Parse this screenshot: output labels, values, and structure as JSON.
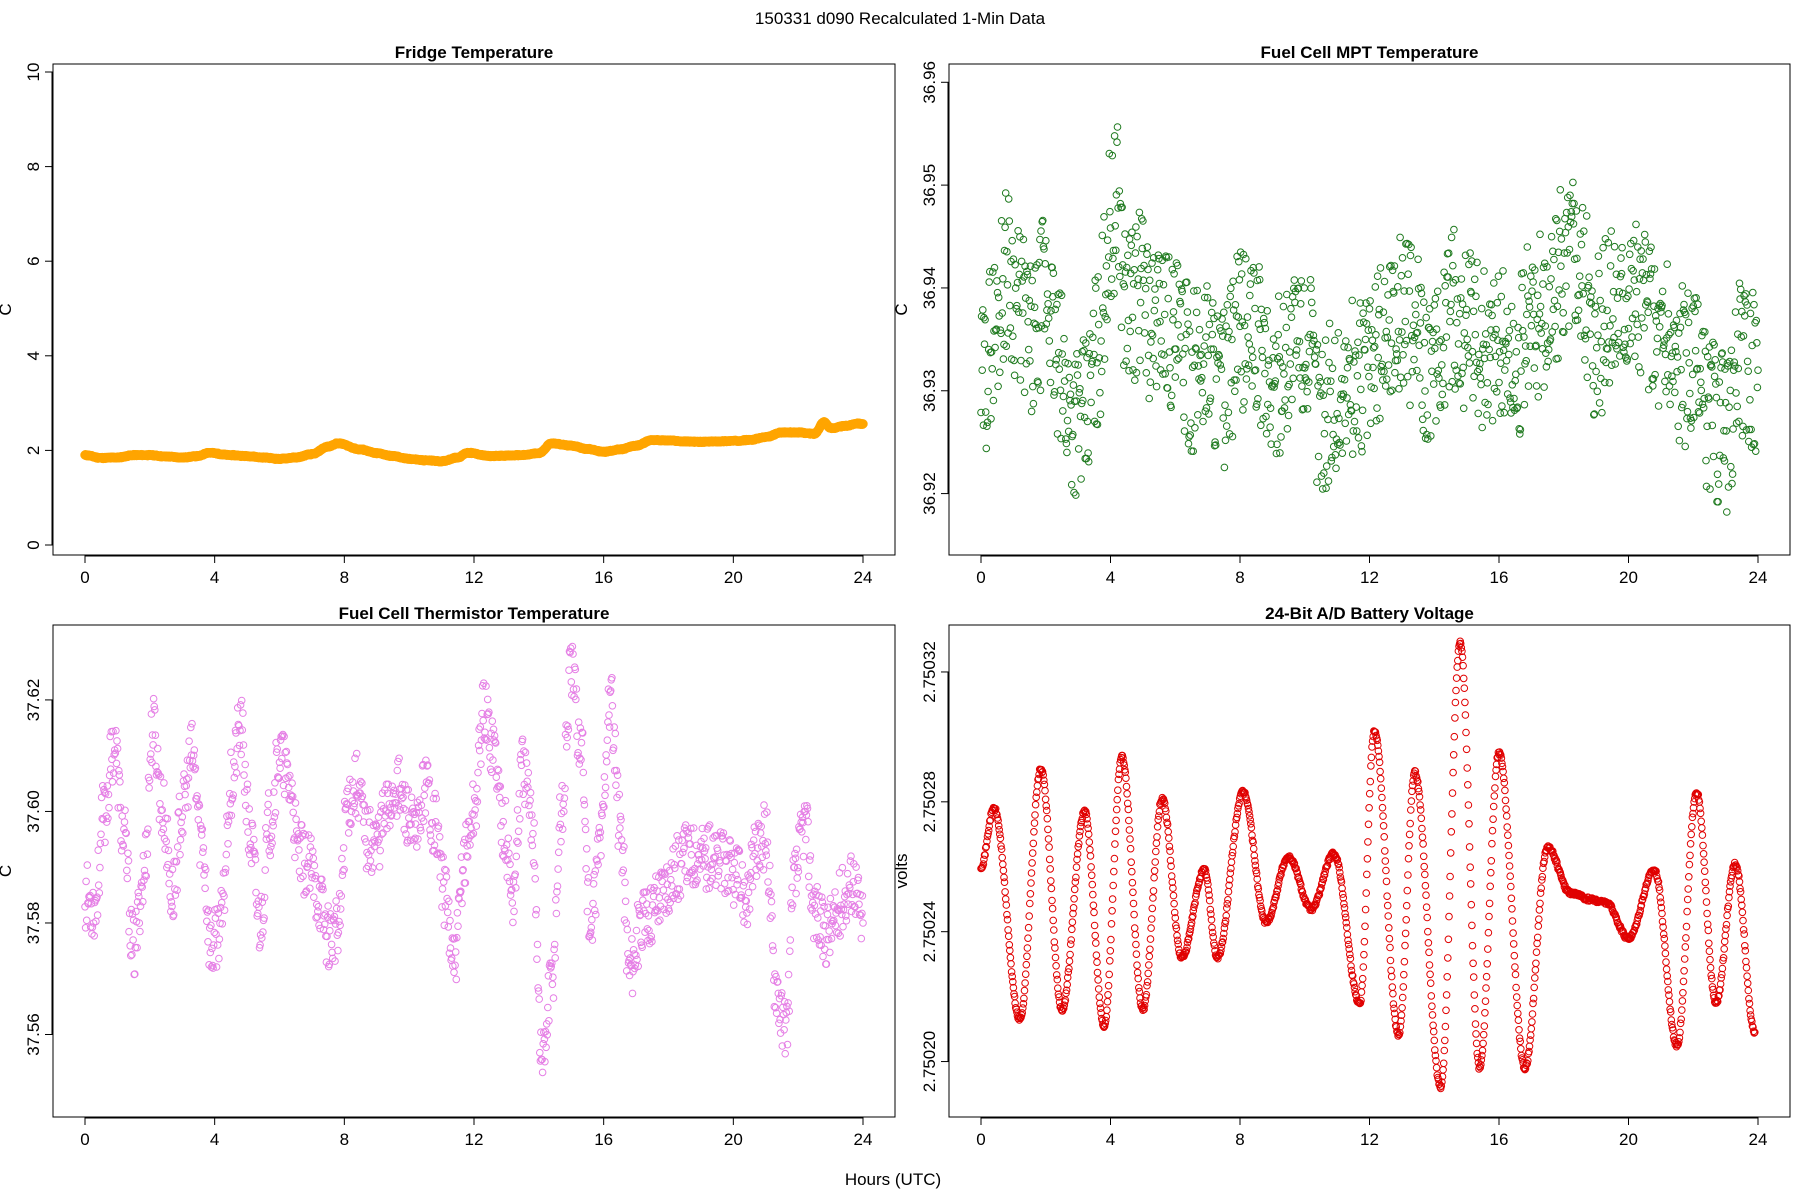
{
  "suptitle": "150331   d090   Recalculated 1-Min Data",
  "xlabel": "Hours (UTC)",
  "chart_data": [
    {
      "type": "scatter",
      "title": "Fridge Temperature",
      "xlabel": "Hours (UTC)",
      "ylabel": "C",
      "xlim": [
        0,
        24
      ],
      "ylim": [
        0,
        10
      ],
      "xticks": [
        0,
        4,
        8,
        12,
        16,
        20,
        24
      ],
      "yticks": [
        0,
        2,
        4,
        6,
        8,
        10
      ],
      "ytick_labels": [
        "0",
        "2",
        "4",
        "6",
        "8",
        "10"
      ],
      "color": "#ffa500",
      "marker": "filled-circle",
      "x": [
        0.0,
        0.5,
        1.0,
        1.5,
        2.0,
        2.5,
        3.0,
        3.5,
        3.8,
        4.5,
        5.0,
        5.5,
        6.0,
        6.5,
        7.0,
        7.5,
        7.8,
        8.5,
        9.0,
        9.5,
        10.0,
        10.5,
        11.0,
        11.5,
        11.8,
        12.5,
        13.0,
        13.5,
        14.0,
        14.4,
        15.0,
        15.5,
        16.0,
        16.5,
        17.0,
        17.5,
        18.0,
        18.5,
        19.0,
        19.5,
        20.0,
        20.5,
        21.0,
        21.5,
        22.0,
        22.5,
        22.8,
        23.0,
        23.5,
        23.8,
        24.0
      ],
      "y": [
        1.9,
        1.84,
        1.85,
        1.9,
        1.9,
        1.87,
        1.85,
        1.88,
        1.95,
        1.9,
        1.88,
        1.85,
        1.82,
        1.85,
        1.92,
        2.08,
        2.15,
        2.02,
        1.94,
        1.88,
        1.82,
        1.79,
        1.77,
        1.85,
        1.95,
        1.88,
        1.89,
        1.9,
        1.94,
        2.15,
        2.1,
        2.03,
        1.97,
        2.02,
        2.1,
        2.22,
        2.21,
        2.19,
        2.18,
        2.19,
        2.2,
        2.22,
        2.28,
        2.38,
        2.38,
        2.35,
        2.6,
        2.47,
        2.52,
        2.57,
        2.56
      ]
    },
    {
      "type": "scatter",
      "title": "Fuel Cell MPT Temperature",
      "xlabel": "Hours (UTC)",
      "ylabel": "C",
      "xlim": [
        0,
        24
      ],
      "ylim": [
        36.915,
        36.961
      ],
      "xticks": [
        0,
        4,
        8,
        12,
        16,
        20,
        24
      ],
      "yticks": [
        36.92,
        36.93,
        36.94,
        36.95,
        36.96
      ],
      "ytick_labels": [
        "36.92",
        "36.93",
        "36.94",
        "36.95",
        "36.96"
      ],
      "color": "#1f7a1f",
      "marker": "open-circle",
      "x": [
        0.0,
        0.4,
        0.8,
        1.2,
        1.6,
        2.0,
        2.4,
        2.8,
        3.2,
        3.6,
        4.0,
        4.2,
        4.5,
        5.0,
        5.3,
        5.6,
        6.0,
        6.5,
        7.0,
        7.5,
        8.0,
        8.5,
        9.0,
        9.5,
        10.0,
        10.5,
        11.0,
        11.5,
        12.0,
        12.5,
        13.0,
        13.5,
        14.0,
        14.5,
        15.0,
        15.5,
        16.0,
        16.5,
        17.0,
        17.5,
        18.0,
        18.3,
        18.6,
        19.0,
        19.5,
        20.0,
        20.5,
        21.0,
        21.5,
        22.0,
        22.5,
        23.0,
        23.5,
        24.0
      ],
      "y": [
        36.93,
        36.936,
        36.942,
        36.938,
        36.934,
        36.94,
        36.932,
        36.928,
        36.927,
        36.934,
        36.946,
        36.948,
        36.938,
        36.94,
        36.936,
        36.938,
        36.935,
        36.932,
        36.934,
        36.93,
        36.936,
        36.935,
        36.93,
        36.934,
        36.935,
        36.928,
        36.929,
        36.931,
        36.932,
        36.936,
        36.938,
        36.935,
        36.931,
        36.938,
        36.936,
        36.934,
        36.935,
        36.932,
        36.937,
        36.938,
        36.942,
        36.945,
        36.94,
        36.935,
        36.938,
        36.94,
        36.938,
        36.935,
        36.933,
        36.932,
        36.928,
        36.926,
        36.933,
        36.932
      ]
    },
    {
      "type": "scatter",
      "title": "Fuel Cell Thermistor Temperature",
      "xlabel": "Hours (UTC)",
      "ylabel": "C",
      "xlim": [
        0,
        24
      ],
      "ylim": [
        37.547,
        37.632
      ],
      "xticks": [
        0,
        4,
        8,
        12,
        16,
        20,
        24
      ],
      "yticks": [
        37.56,
        37.58,
        37.6,
        37.62
      ],
      "ytick_labels": [
        "37.56",
        "37.58",
        "37.60",
        "37.62"
      ],
      "color": "#e57fe5",
      "marker": "open-circle",
      "x": [
        0.0,
        0.3,
        0.6,
        0.9,
        1.2,
        1.5,
        1.8,
        2.1,
        2.4,
        2.7,
        3.0,
        3.3,
        3.6,
        3.9,
        4.2,
        4.5,
        4.8,
        5.1,
        5.4,
        5.7,
        6.0,
        6.3,
        6.6,
        6.9,
        7.2,
        7.5,
        7.8,
        8.1,
        8.4,
        8.7,
        9.0,
        9.3,
        9.6,
        9.9,
        10.2,
        10.5,
        10.8,
        11.1,
        11.4,
        11.7,
        12.0,
        12.3,
        12.6,
        12.9,
        13.2,
        13.5,
        13.8,
        14.1,
        14.4,
        14.7,
        15.0,
        15.3,
        15.6,
        15.9,
        16.2,
        16.5,
        16.8,
        17.1,
        17.4,
        17.7,
        18.0,
        18.3,
        18.6,
        18.9,
        19.2,
        19.5,
        19.8,
        20.1,
        20.4,
        20.7,
        21.0,
        21.3,
        21.6,
        21.9,
        22.2,
        22.5,
        22.8,
        23.1,
        23.4,
        23.7,
        24.0
      ],
      "y": [
        37.585,
        37.583,
        37.6,
        37.612,
        37.595,
        37.575,
        37.588,
        37.615,
        37.6,
        37.585,
        37.6,
        37.61,
        37.595,
        37.575,
        37.58,
        37.605,
        37.615,
        37.595,
        37.58,
        37.598,
        37.61,
        37.605,
        37.592,
        37.59,
        37.585,
        37.578,
        37.578,
        37.602,
        37.605,
        37.595,
        37.595,
        37.6,
        37.605,
        37.6,
        37.595,
        37.605,
        37.598,
        37.585,
        37.572,
        37.592,
        37.6,
        37.618,
        37.612,
        37.598,
        37.585,
        37.608,
        37.598,
        37.555,
        37.57,
        37.6,
        37.625,
        37.612,
        37.578,
        37.595,
        37.62,
        37.598,
        37.572,
        37.578,
        37.582,
        37.585,
        37.588,
        37.59,
        37.592,
        37.593,
        37.592,
        37.591,
        37.59,
        37.588,
        37.585,
        37.592,
        37.596,
        37.57,
        37.56,
        37.588,
        37.598,
        37.583,
        37.578,
        37.58,
        37.585,
        37.588,
        37.58
      ]
    },
    {
      "type": "scatter",
      "title": "24-Bit A/D Battery Voltage",
      "xlabel": "Hours (UTC)",
      "ylabel": "volts",
      "xlim": [
        0,
        24
      ],
      "ylim": [
        2.750186,
        2.750332
      ],
      "xticks": [
        0,
        4,
        8,
        12,
        16,
        20,
        24
      ],
      "yticks": [
        2.7502,
        2.75024,
        2.75028,
        2.75032
      ],
      "ytick_labels": [
        "2.75020",
        "2.75024",
        "2.75028",
        "2.75032"
      ],
      "color": "#e00000",
      "marker": "open-circle",
      "x": [
        0.0,
        0.4,
        1.2,
        1.85,
        2.5,
        3.2,
        3.8,
        4.35,
        5.0,
        5.6,
        6.2,
        6.9,
        7.3,
        8.1,
        8.8,
        9.5,
        10.2,
        10.9,
        11.7,
        12.15,
        12.9,
        13.4,
        14.2,
        14.8,
        15.4,
        16.0,
        16.8,
        17.5,
        18.2,
        18.8,
        19.3,
        20.0,
        20.8,
        21.5,
        22.1,
        22.7,
        23.3,
        23.9
      ],
      "y": [
        2.75026,
        2.750278,
        2.750213,
        2.75029,
        2.750216,
        2.750277,
        2.750211,
        2.750294,
        2.750216,
        2.750281,
        2.750232,
        2.750259,
        2.750232,
        2.750283,
        2.750243,
        2.750263,
        2.750247,
        2.750264,
        2.750218,
        2.750302,
        2.750208,
        2.750289,
        2.750192,
        2.750329,
        2.750198,
        2.750295,
        2.750198,
        2.750266,
        2.750252,
        2.75025,
        2.750249,
        2.750238,
        2.750259,
        2.750205,
        2.750283,
        2.750218,
        2.750261,
        2.750209
      ]
    }
  ]
}
